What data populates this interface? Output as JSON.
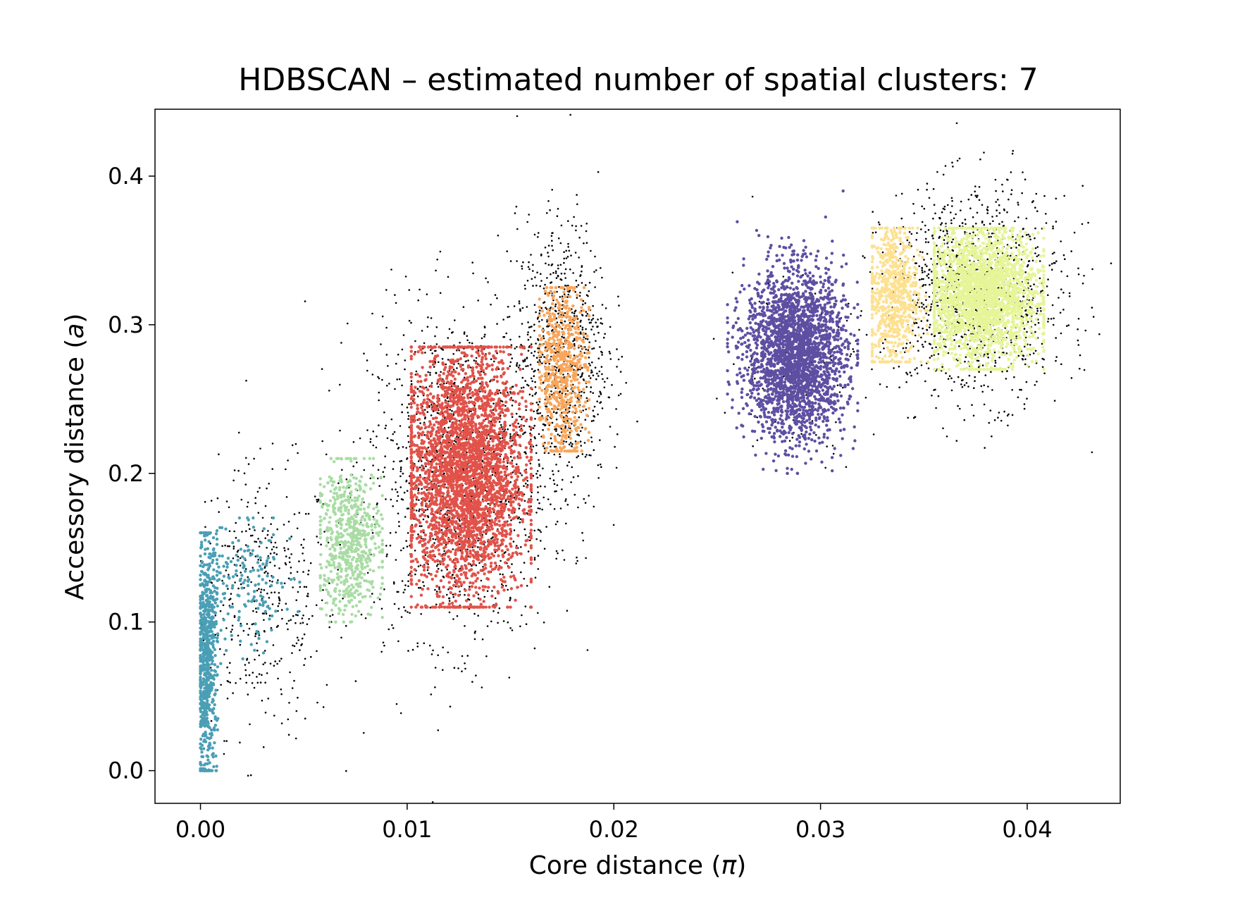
{
  "chart_data": {
    "type": "scatter",
    "title": "HDBSCAN – estimated number of spatial clusters: 7",
    "xlabel_text": "Core distance (",
    "xlabel_symbol": "π",
    "xlabel_close": ")",
    "ylabel_text": "Accessory distance (",
    "ylabel_symbol": "a",
    "ylabel_close": ")",
    "xlim": [
      -0.0022,
      0.0445
    ],
    "ylim": [
      -0.022,
      0.445
    ],
    "xticks": [
      0.0,
      0.01,
      0.02,
      0.03,
      0.04
    ],
    "xtick_labels": [
      "0.00",
      "0.01",
      "0.02",
      "0.03",
      "0.04"
    ],
    "yticks": [
      0.0,
      0.1,
      0.2,
      0.3,
      0.4
    ],
    "ytick_labels": [
      "0.0",
      "0.1",
      "0.2",
      "0.3",
      "0.4"
    ],
    "grid": false,
    "legend": false,
    "noise_color": "#000000",
    "clusters": [
      {
        "color": "#4a9fb5",
        "center": [
          0.0003,
          0.075
        ],
        "spread": [
          0.00025,
          0.04
        ],
        "count": 700,
        "range_x": [
          0.0,
          0.0012
        ],
        "range_y": [
          0.0,
          0.16
        ]
      },
      {
        "color": "#4a9fb5",
        "center": [
          0.0022,
          0.125
        ],
        "spread": [
          0.0011,
          0.022
        ],
        "count": 160,
        "range_x": [
          0.0008,
          0.0048
        ],
        "range_y": [
          0.06,
          0.17
        ]
      },
      {
        "color": "#a9dca4",
        "center": [
          0.0072,
          0.155
        ],
        "spread": [
          0.0008,
          0.025
        ],
        "count": 650,
        "range_x": [
          0.0058,
          0.0088
        ],
        "range_y": [
          0.1,
          0.21
        ]
      },
      {
        "color": "#e2524a",
        "center": [
          0.0128,
          0.2
        ],
        "spread": [
          0.0014,
          0.042
        ],
        "count": 3200,
        "range_x": [
          0.0102,
          0.016
        ],
        "range_y": [
          0.11,
          0.285
        ]
      },
      {
        "color": "#f9a65b",
        "center": [
          0.0175,
          0.27
        ],
        "spread": [
          0.0006,
          0.03
        ],
        "count": 600,
        "range_x": [
          0.0164,
          0.0188
        ],
        "range_y": [
          0.215,
          0.325
        ]
      },
      {
        "color": "#5e4fa2",
        "center": [
          0.0288,
          0.28
        ],
        "spread": [
          0.0012,
          0.028
        ],
        "count": 2600,
        "range_x": [
          0.0255,
          0.0318
        ],
        "range_y": [
          0.2,
          0.39
        ]
      },
      {
        "color": "#fde191",
        "center": [
          0.0335,
          0.32
        ],
        "spread": [
          0.0006,
          0.025
        ],
        "count": 700,
        "range_x": [
          0.0325,
          0.0352
        ],
        "range_y": [
          0.275,
          0.365
        ]
      },
      {
        "color": "#e6f598",
        "center": [
          0.0378,
          0.32
        ],
        "spread": [
          0.0014,
          0.022
        ],
        "count": 2400,
        "range_x": [
          0.0355,
          0.0408
        ],
        "range_y": [
          0.27,
          0.365
        ]
      }
    ],
    "noise": [
      {
        "center": [
          0.003,
          0.115
        ],
        "spread": [
          0.0018,
          0.045
        ],
        "count": 420
      },
      {
        "center": [
          0.0125,
          0.2
        ],
        "spread": [
          0.0022,
          0.055
        ],
        "count": 1500
      },
      {
        "center": [
          0.0175,
          0.28
        ],
        "spread": [
          0.0011,
          0.045
        ],
        "count": 800
      },
      {
        "center": [
          0.0375,
          0.32
        ],
        "spread": [
          0.0022,
          0.035
        ],
        "count": 1200
      },
      {
        "center": [
          0.0287,
          0.28
        ],
        "spread": [
          0.0016,
          0.035
        ],
        "count": 120
      }
    ]
  }
}
